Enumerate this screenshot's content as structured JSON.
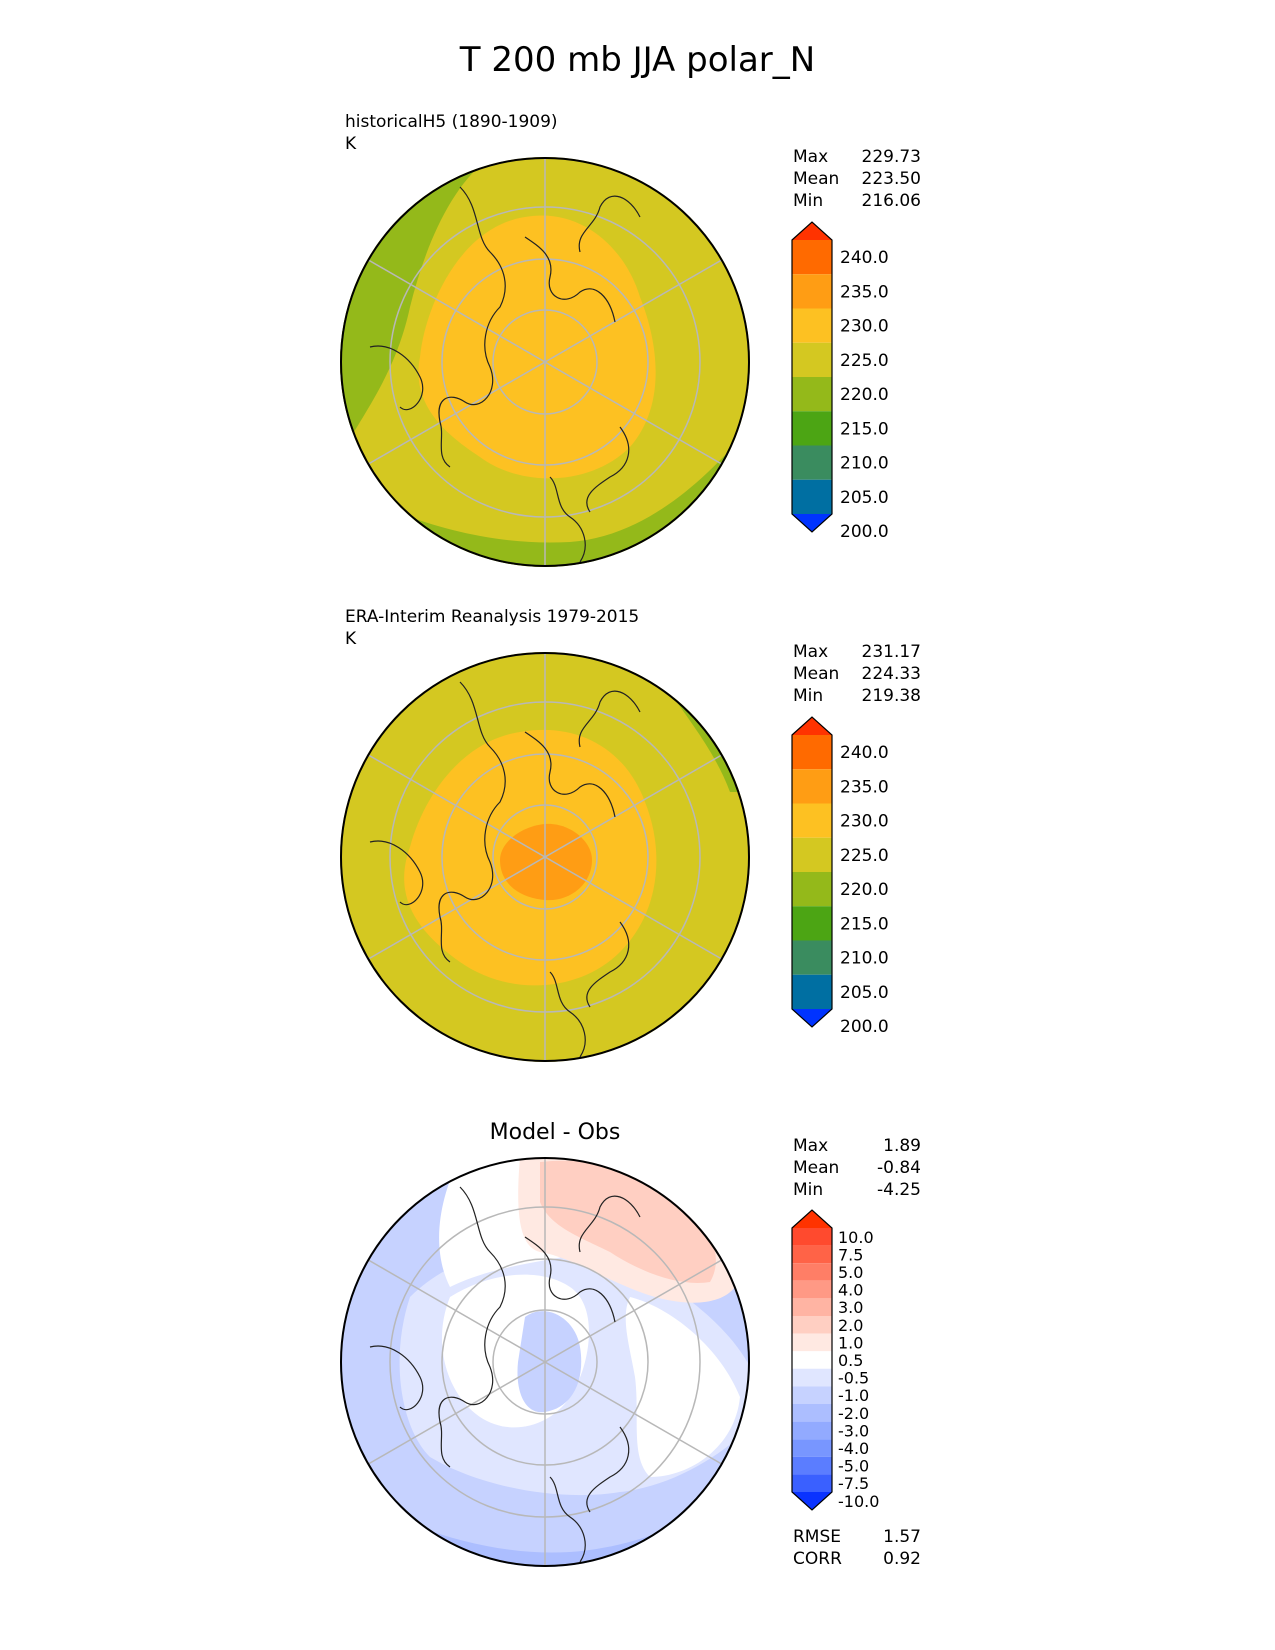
{
  "title": "T 200 mb JJA polar_N",
  "panels": [
    {
      "label_line1": "historicalH5 (1890-1909)",
      "label_line2": "K",
      "stats": [
        {
          "name": "Max",
          "value": "229.73"
        },
        {
          "name": "Mean",
          "value": "223.50"
        },
        {
          "name": "Min",
          "value": "216.06"
        }
      ],
      "colorbar": {
        "ticks": [
          "240.0",
          "235.0",
          "230.0",
          "225.0",
          "220.0",
          "215.0",
          "210.0",
          "205.0",
          "200.0"
        ],
        "colors": [
          "#ff3300",
          "#ff6a00",
          "#ff9d14",
          "#fdc122",
          "#d4c821",
          "#94b91a",
          "#4ca514",
          "#3a8c5f",
          "#006fa2",
          "#0033ff"
        ]
      }
    },
    {
      "label_line1": "ERA-Interim Reanalysis 1979-2015",
      "label_line2": "K",
      "stats": [
        {
          "name": "Max",
          "value": "231.17"
        },
        {
          "name": "Mean",
          "value": "224.33"
        },
        {
          "name": "Min",
          "value": "219.38"
        }
      ],
      "colorbar": {
        "ticks": [
          "240.0",
          "235.0",
          "230.0",
          "225.0",
          "220.0",
          "215.0",
          "210.0",
          "205.0",
          "200.0"
        ],
        "colors": [
          "#ff3300",
          "#ff6a00",
          "#ff9d14",
          "#fdc122",
          "#d4c821",
          "#94b91a",
          "#4ca514",
          "#3a8c5f",
          "#006fa2",
          "#0033ff"
        ]
      }
    },
    {
      "title": "Model - Obs",
      "stats": [
        {
          "name": "Max",
          "value": "1.89"
        },
        {
          "name": "Mean",
          "value": "-0.84"
        },
        {
          "name": "Min",
          "value": "-4.25"
        }
      ],
      "extra_stats": [
        {
          "name": "RMSE",
          "value": "1.57"
        },
        {
          "name": "CORR",
          "value": "0.92"
        }
      ],
      "colorbar": {
        "ticks": [
          "10.0",
          "7.5",
          "5.0",
          "4.0",
          "3.0",
          "2.0",
          "1.0",
          "0.5",
          "-0.5",
          "-1.0",
          "-2.0",
          "-3.0",
          "-4.0",
          "-5.0",
          "-7.5",
          "-10.0"
        ],
        "colors": [
          "#ff3300",
          "#ff4a2e",
          "#ff6347",
          "#ff7e66",
          "#ff9985",
          "#ffb4a3",
          "#ffcfc2",
          "#ffe9e2",
          "#ffffff",
          "#e0e6ff",
          "#c6d2ff",
          "#acbeff",
          "#92aaff",
          "#7896ff",
          "#5b7dff",
          "#3a60ff",
          "#0a33ff"
        ]
      }
    }
  ],
  "chart_data": [
    {
      "type": "heatmap",
      "projection": "north polar stereographic",
      "variable": "T 200 mb JJA",
      "units": "K",
      "source": "historicalH5 (1890-1909)",
      "max": 229.73,
      "mean": 223.5,
      "min": 216.06,
      "levels": [
        200,
        205,
        210,
        215,
        220,
        225,
        230,
        235,
        240
      ],
      "extend": "both"
    },
    {
      "type": "heatmap",
      "projection": "north polar stereographic",
      "variable": "T 200 mb JJA",
      "units": "K",
      "source": "ERA-Interim Reanalysis 1979-2015",
      "max": 231.17,
      "mean": 224.33,
      "min": 219.38,
      "levels": [
        200,
        205,
        210,
        215,
        220,
        225,
        230,
        235,
        240
      ],
      "extend": "both"
    },
    {
      "type": "heatmap",
      "projection": "north polar stereographic",
      "title": "Model - Obs",
      "max": 1.89,
      "mean": -0.84,
      "min": -4.25,
      "rmse": 1.57,
      "corr": 0.92,
      "levels": [
        -10,
        -7.5,
        -5,
        -4,
        -3,
        -2,
        -1,
        -0.5,
        0.5,
        1,
        2,
        3,
        4,
        5,
        7.5,
        10
      ],
      "extend": "both"
    }
  ]
}
